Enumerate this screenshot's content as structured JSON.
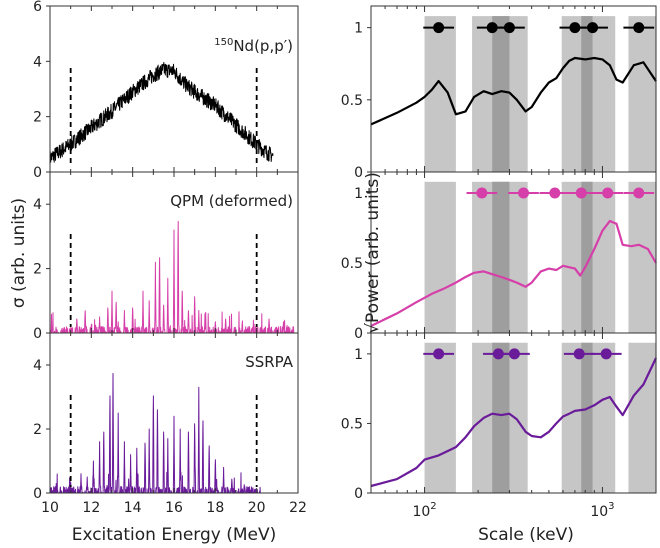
{
  "colors": {
    "exp": "#000000",
    "qpm": "#d63fa9",
    "ssrpa": "#6a1b9a",
    "band": "#c6c6c6",
    "band_overlap": "#9e9e9e",
    "window": "#000000"
  },
  "left": {
    "xlabel": "Excitation Energy (MeV)",
    "ylabel": "σ (arb. units)",
    "xticks": [
      "10",
      "12",
      "14",
      "16",
      "18",
      "20",
      "22"
    ],
    "xlim": [
      10,
      22
    ],
    "window_lines": [
      11,
      20
    ],
    "panels": [
      {
        "label_sup": "150",
        "label": "Nd(p,p′)",
        "ylim": [
          0,
          6
        ],
        "yticks": [
          "0",
          "2",
          "4",
          "6"
        ]
      },
      {
        "label": "QPM (deformed)",
        "ylim": [
          0,
          5
        ],
        "yticks": [
          "0",
          "2",
          "4"
        ]
      },
      {
        "label": "SSRPA",
        "ylim": [
          0,
          5
        ],
        "yticks": [
          "0",
          "2",
          "4"
        ]
      }
    ]
  },
  "right": {
    "xlabel": "Scale (keV)",
    "ylabel": "√Power (arb. units)",
    "xlim": [
      50,
      2000
    ],
    "xscale": "log",
    "xticks": [
      {
        "v": 100,
        "base": "10",
        "exp": "2"
      },
      {
        "v": 1000,
        "base": "10",
        "exp": "3"
      }
    ],
    "ylim": [
      0,
      1.15
    ],
    "yticks": [
      "0",
      "0.5",
      "1"
    ],
    "bands": [
      [
        100,
        150
      ],
      [
        185,
        380
      ],
      [
        590,
        1180
      ],
      [
        1400,
        2000
      ]
    ],
    "overlap": [
      [
        240,
        300
      ],
      [
        760,
        880
      ]
    ]
  },
  "chart_data": [
    {
      "type": "line",
      "title": "150Nd(p,p′)",
      "xlabel": "Excitation Energy (MeV)",
      "ylabel": "σ (arb. units)",
      "xlim": [
        10,
        22
      ],
      "ylim": [
        0,
        6
      ],
      "envelope": {
        "x": [
          10,
          11,
          12,
          13,
          14,
          15,
          15.5,
          16,
          16.5,
          17,
          18,
          19,
          20,
          20.5,
          21
        ],
        "y": [
          0.5,
          1.0,
          1.6,
          2.2,
          2.9,
          3.5,
          3.7,
          3.65,
          3.2,
          2.9,
          2.4,
          1.7,
          1.0,
          0.7,
          0.5
        ]
      },
      "end_x": 20.8
    },
    {
      "type": "line",
      "title": "QPM (deformed)",
      "xlabel": "Excitation Energy (MeV)",
      "ylabel": "σ (arb. units)",
      "xlim": [
        10,
        22
      ],
      "ylim": [
        0,
        5
      ],
      "peaks": [
        [
          11.3,
          0.5
        ],
        [
          11.7,
          0.8
        ],
        [
          12.0,
          0.3
        ],
        [
          12.4,
          0.5
        ],
        [
          12.8,
          0.9
        ],
        [
          13.0,
          1.3
        ],
        [
          13.2,
          1.1
        ],
        [
          13.6,
          0.7
        ],
        [
          14.0,
          0.9
        ],
        [
          14.5,
          1.3
        ],
        [
          14.8,
          1.0
        ],
        [
          15.1,
          2.2
        ],
        [
          15.3,
          2.7
        ],
        [
          15.5,
          1.0
        ],
        [
          15.7,
          1.7
        ],
        [
          16.0,
          3.2
        ],
        [
          16.2,
          4.0
        ],
        [
          16.4,
          1.5
        ],
        [
          16.7,
          0.8
        ],
        [
          17.0,
          1.3
        ],
        [
          17.2,
          0.7
        ],
        [
          17.5,
          0.6
        ],
        [
          18.0,
          0.4
        ],
        [
          18.5,
          0.5
        ],
        [
          19.3,
          0.3
        ],
        [
          19.8,
          0.2
        ],
        [
          20.6,
          0.5
        ],
        [
          21.3,
          0.4
        ]
      ],
      "end_x": 21.8
    },
    {
      "type": "line",
      "title": "SSRPA",
      "xlabel": "Excitation Energy (MeV)",
      "ylabel": "σ (arb. units)",
      "xlim": [
        10,
        22
      ],
      "ylim": [
        0,
        5
      ],
      "peaks": [
        [
          11.0,
          0.4
        ],
        [
          11.5,
          0.6
        ],
        [
          11.8,
          0.5
        ],
        [
          12.1,
          1.0
        ],
        [
          12.4,
          1.6
        ],
        [
          12.6,
          2.2
        ],
        [
          12.9,
          3.5
        ],
        [
          13.05,
          4.0
        ],
        [
          13.3,
          2.5
        ],
        [
          13.6,
          1.6
        ],
        [
          13.9,
          1.2
        ],
        [
          14.2,
          1.4
        ],
        [
          14.6,
          1.8
        ],
        [
          14.8,
          2.0
        ],
        [
          15.0,
          3.5
        ],
        [
          15.2,
          3.0
        ],
        [
          15.5,
          2.2
        ],
        [
          15.7,
          1.7
        ],
        [
          16.0,
          2.4
        ],
        [
          16.3,
          2.0
        ],
        [
          16.7,
          2.2
        ],
        [
          17.0,
          2.5
        ],
        [
          17.2,
          3.3
        ],
        [
          17.4,
          2.6
        ],
        [
          17.7,
          1.7
        ],
        [
          18.0,
          1.2
        ],
        [
          18.4,
          0.8
        ],
        [
          18.8,
          0.5
        ],
        [
          19.4,
          0.3
        ]
      ],
      "end_x": 20.2
    },
    {
      "type": "line",
      "xlabel": "Scale (keV)",
      "ylabel": "√Power (arb. units)",
      "xscale": "log",
      "xlim": [
        50,
        2000
      ],
      "ylim": [
        0,
        1.15
      ],
      "series": [
        {
          "x": [
            50,
            70,
            90,
            100,
            110,
            120,
            135,
            150,
            170,
            190,
            215,
            240,
            270,
            300,
            330,
            370,
            400,
            450,
            500,
            550,
            600,
            650,
            700,
            800,
            900,
            1000,
            1100,
            1200,
            1300,
            1500,
            1700,
            2000
          ],
          "y": [
            0.33,
            0.41,
            0.48,
            0.52,
            0.57,
            0.63,
            0.55,
            0.4,
            0.42,
            0.52,
            0.56,
            0.54,
            0.56,
            0.55,
            0.5,
            0.42,
            0.45,
            0.55,
            0.62,
            0.65,
            0.72,
            0.77,
            0.79,
            0.78,
            0.79,
            0.78,
            0.74,
            0.64,
            0.62,
            0.74,
            0.76,
            0.63
          ],
          "dots": [
            120,
            240,
            300,
            700,
            880,
            1600
          ]
        }
      ]
    },
    {
      "type": "line",
      "xlabel": "Scale (keV)",
      "ylabel": "√Power (arb. units)",
      "xscale": "log",
      "xlim": [
        50,
        2000
      ],
      "ylim": [
        0,
        1.15
      ],
      "series": [
        {
          "x": [
            50,
            70,
            90,
            110,
            130,
            150,
            170,
            190,
            215,
            240,
            270,
            300,
            330,
            370,
            400,
            450,
            500,
            550,
            600,
            700,
            750,
            800,
            900,
            1000,
            1100,
            1200,
            1300,
            1450,
            1600,
            1800,
            2000
          ],
          "y": [
            0.05,
            0.14,
            0.22,
            0.28,
            0.32,
            0.36,
            0.4,
            0.43,
            0.44,
            0.42,
            0.4,
            0.38,
            0.36,
            0.33,
            0.36,
            0.44,
            0.46,
            0.45,
            0.48,
            0.46,
            0.41,
            0.47,
            0.6,
            0.73,
            0.8,
            0.78,
            0.63,
            0.62,
            0.63,
            0.6,
            0.5
          ],
          "dots": [
            210,
            360,
            540,
            760,
            1070,
            1600
          ]
        }
      ]
    },
    {
      "type": "line",
      "xlabel": "Scale (keV)",
      "ylabel": "√Power (arb. units)",
      "xscale": "log",
      "xlim": [
        50,
        2000
      ],
      "ylim": [
        0,
        1.15
      ],
      "series": [
        {
          "x": [
            50,
            70,
            90,
            100,
            120,
            150,
            170,
            190,
            215,
            240,
            270,
            300,
            330,
            370,
            400,
            450,
            500,
            550,
            600,
            650,
            700,
            800,
            900,
            1000,
            1100,
            1200,
            1300,
            1500,
            1700,
            2000
          ],
          "y": [
            0.05,
            0.1,
            0.18,
            0.24,
            0.27,
            0.33,
            0.4,
            0.48,
            0.54,
            0.57,
            0.56,
            0.57,
            0.53,
            0.44,
            0.41,
            0.4,
            0.44,
            0.5,
            0.55,
            0.57,
            0.59,
            0.6,
            0.63,
            0.67,
            0.69,
            0.62,
            0.56,
            0.7,
            0.78,
            0.97
          ],
          "dots": [
            120,
            260,
            320,
            740,
            1050
          ]
        }
      ]
    }
  ]
}
